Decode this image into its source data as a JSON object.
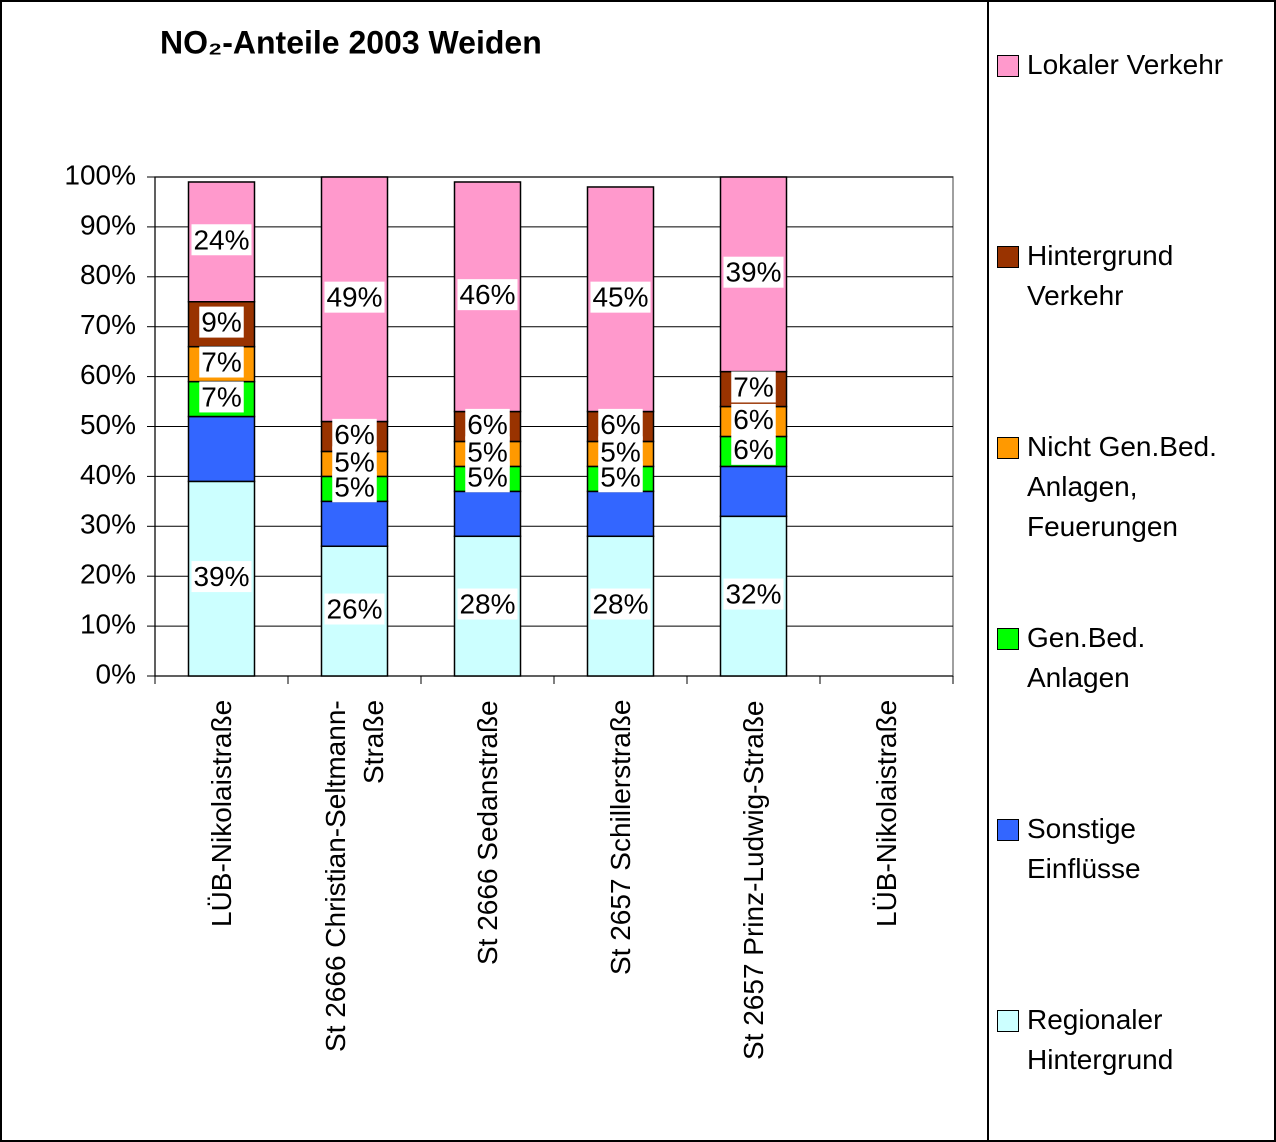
{
  "chart_data": {
    "type": "bar",
    "stacked": true,
    "title": "NO₂-Anteile 2003 Weiden",
    "categories": [
      "LÜB-Nikolaistraße",
      "St 2666 Christian-Seltmann-\nStraße",
      "St 2666 Sedanstraße",
      "St 2657 Schillerstraße",
      "St 2657 Prinz-Ludwig-Straße",
      "LÜB-Nikolaistraße"
    ],
    "series": [
      {
        "name": "Regionaler\nHintergrund",
        "color": "#ccffff",
        "values": [
          39,
          26,
          28,
          28,
          32,
          null
        ],
        "value_labels": [
          "39%",
          "26%",
          "28%",
          "28%",
          "32%",
          null
        ]
      },
      {
        "name": "Sonstige\nEinflüsse",
        "color": "#3366ff",
        "values": [
          13,
          9,
          9,
          9,
          10,
          null
        ]
      },
      {
        "name": "Gen.Bed.\nAnlagen",
        "color": "#00ff00",
        "values": [
          7,
          5,
          5,
          5,
          6,
          null
        ],
        "value_labels": [
          "7%",
          "5%",
          "5%",
          "5%",
          "6%",
          null
        ]
      },
      {
        "name": "Nicht Gen.Bed.\nAnlagen,\nFeuerungen",
        "color": "#ff9900",
        "values": [
          7,
          5,
          5,
          5,
          6,
          null
        ],
        "value_labels": [
          "7%",
          "5%",
          "5%",
          "5%",
          "6%",
          null
        ]
      },
      {
        "name": "Hintergrund\nVerkehr",
        "color": "#993300",
        "values": [
          9,
          6,
          6,
          6,
          7,
          null
        ],
        "value_labels": [
          "9%",
          "6%",
          "6%",
          "6%",
          "7%",
          null
        ]
      },
      {
        "name": "Lokaler Verkehr",
        "color": "#ff99cc",
        "values": [
          24,
          49,
          46,
          45,
          39,
          null
        ],
        "value_labels": [
          "24%",
          "49%",
          "46%",
          "45%",
          "39%",
          null
        ]
      }
    ],
    "ylim": [
      0,
      100
    ],
    "yticks": [
      {
        "value": 0,
        "label": "0%"
      },
      {
        "value": 10,
        "label": "10%"
      },
      {
        "value": 20,
        "label": "20%"
      },
      {
        "value": 30,
        "label": "30%"
      },
      {
        "value": 40,
        "label": "40%"
      },
      {
        "value": 50,
        "label": "50%"
      },
      {
        "value": 60,
        "label": "60%"
      },
      {
        "value": 70,
        "label": "70%"
      },
      {
        "value": 80,
        "label": "80%"
      },
      {
        "value": 90,
        "label": "90%"
      },
      {
        "value": 100,
        "label": "100%"
      }
    ],
    "grid": true,
    "legend": "right"
  }
}
